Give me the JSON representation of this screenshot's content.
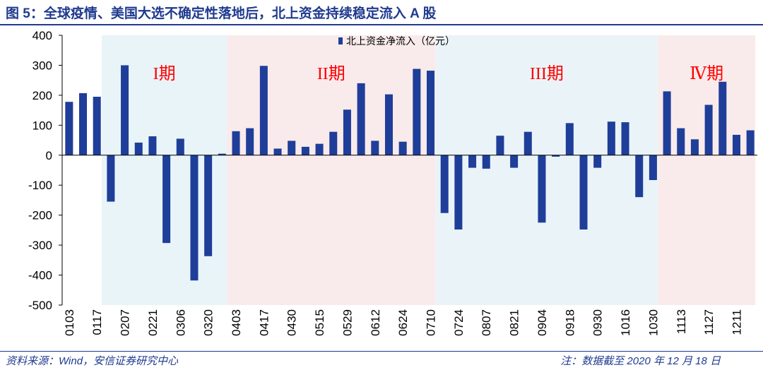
{
  "figure": {
    "title": "图 5：全球疫情、美国大选不确定性落地后，北上资金持续稳定流入 A 股",
    "source": "资料来源：Wind，安信证券研究中心",
    "note": "注：数据截至 2020 年 12 月 18 日"
  },
  "colors": {
    "title": "#1f3a8f",
    "bar": "#1f3e99",
    "period1_bg": "#e8f4f8",
    "period2_bg": "#f9ebeb",
    "period3_bg": "#eaf4f8",
    "period4_bg": "#f9ebeb",
    "period_label": "#ff0000"
  },
  "chart_data": {
    "type": "bar",
    "series": [
      {
        "name": "北上资金净流入（亿元）",
        "values": [
          178,
          207,
          195,
          -155,
          300,
          42,
          63,
          -293,
          55,
          -418,
          -337,
          5,
          80,
          90,
          298,
          22,
          48,
          28,
          38,
          78,
          152,
          240,
          48,
          203,
          45,
          288,
          282,
          -193,
          -248,
          -42,
          -45,
          65,
          -42,
          78,
          -225,
          -5,
          107,
          -248,
          -42,
          112,
          110,
          -140,
          -83,
          213,
          90,
          53,
          168,
          245,
          68,
          83
        ]
      }
    ],
    "ylim": [
      -500,
      400
    ],
    "yticks": [
      "400",
      "300",
      "200",
      "100",
      "0",
      "-100",
      "-200",
      "-300",
      "-400",
      "-500"
    ],
    "xtick_labels": [
      {
        "index": 0,
        "label": "0103"
      },
      {
        "index": 2,
        "label": "0117"
      },
      {
        "index": 4,
        "label": "0207"
      },
      {
        "index": 6,
        "label": "0221"
      },
      {
        "index": 8,
        "label": "0306"
      },
      {
        "index": 10,
        "label": "0320"
      },
      {
        "index": 12,
        "label": "0403"
      },
      {
        "index": 14,
        "label": "0417"
      },
      {
        "index": 16,
        "label": "0430"
      },
      {
        "index": 18,
        "label": "0515"
      },
      {
        "index": 20,
        "label": "0529"
      },
      {
        "index": 22,
        "label": "0612"
      },
      {
        "index": 24,
        "label": "0624"
      },
      {
        "index": 26,
        "label": "0710"
      },
      {
        "index": 28,
        "label": "0724"
      },
      {
        "index": 30,
        "label": "0807"
      },
      {
        "index": 32,
        "label": "0821"
      },
      {
        "index": 34,
        "label": "0904"
      },
      {
        "index": 36,
        "label": "0918"
      },
      {
        "index": 38,
        "label": "0930"
      },
      {
        "index": 40,
        "label": "1016"
      },
      {
        "index": 42,
        "label": "1030"
      },
      {
        "index": 44,
        "label": "1113"
      },
      {
        "index": 46,
        "label": "1127"
      },
      {
        "index": 48,
        "label": "1211"
      }
    ],
    "periods": [
      {
        "label": "I期",
        "start": 3,
        "end": 11
      },
      {
        "label": "II期",
        "start": 12,
        "end": 26
      },
      {
        "label": "III期",
        "start": 27,
        "end": 42
      },
      {
        "label": "Ⅳ期",
        "start": 43,
        "end": 49
      }
    ],
    "legend": "top-center",
    "grid": false
  }
}
